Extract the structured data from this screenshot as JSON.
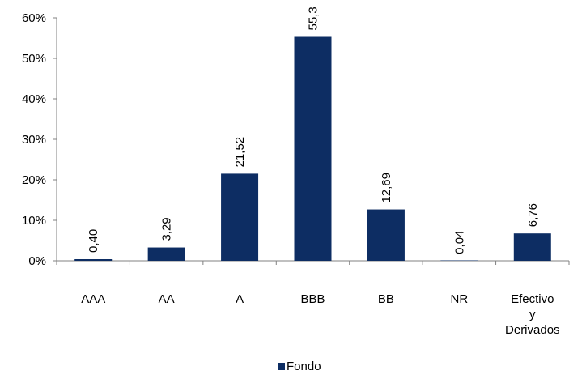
{
  "chart_data": {
    "type": "bar",
    "categories": [
      "AAA",
      "AA",
      "A",
      "BBB",
      "BB",
      "NR",
      "Efectivo y Derivados"
    ],
    "category_lines": [
      [
        "AAA"
      ],
      [
        "AA"
      ],
      [
        "A"
      ],
      [
        "BBB"
      ],
      [
        "BB"
      ],
      [
        "NR"
      ],
      [
        "Efectivo",
        "y",
        "Derivados"
      ]
    ],
    "series": [
      {
        "name": "Fondo",
        "values": [
          0.4,
          3.29,
          21.52,
          55.3,
          12.69,
          0.04,
          6.76
        ],
        "labels": [
          "0,40",
          "3,29",
          "21,52",
          "55,3",
          "12,69",
          "0,04",
          "6,76"
        ],
        "color": "#0d2d63"
      }
    ],
    "y_ticks": [
      0,
      10,
      20,
      30,
      40,
      50,
      60
    ],
    "y_tick_labels": [
      "0%",
      "10%",
      "20%",
      "30%",
      "40%",
      "50%",
      "60%"
    ],
    "ylim": [
      0,
      60
    ],
    "grid": false,
    "legend_position": "bottom",
    "title": "",
    "xlabel": "",
    "ylabel": ""
  }
}
